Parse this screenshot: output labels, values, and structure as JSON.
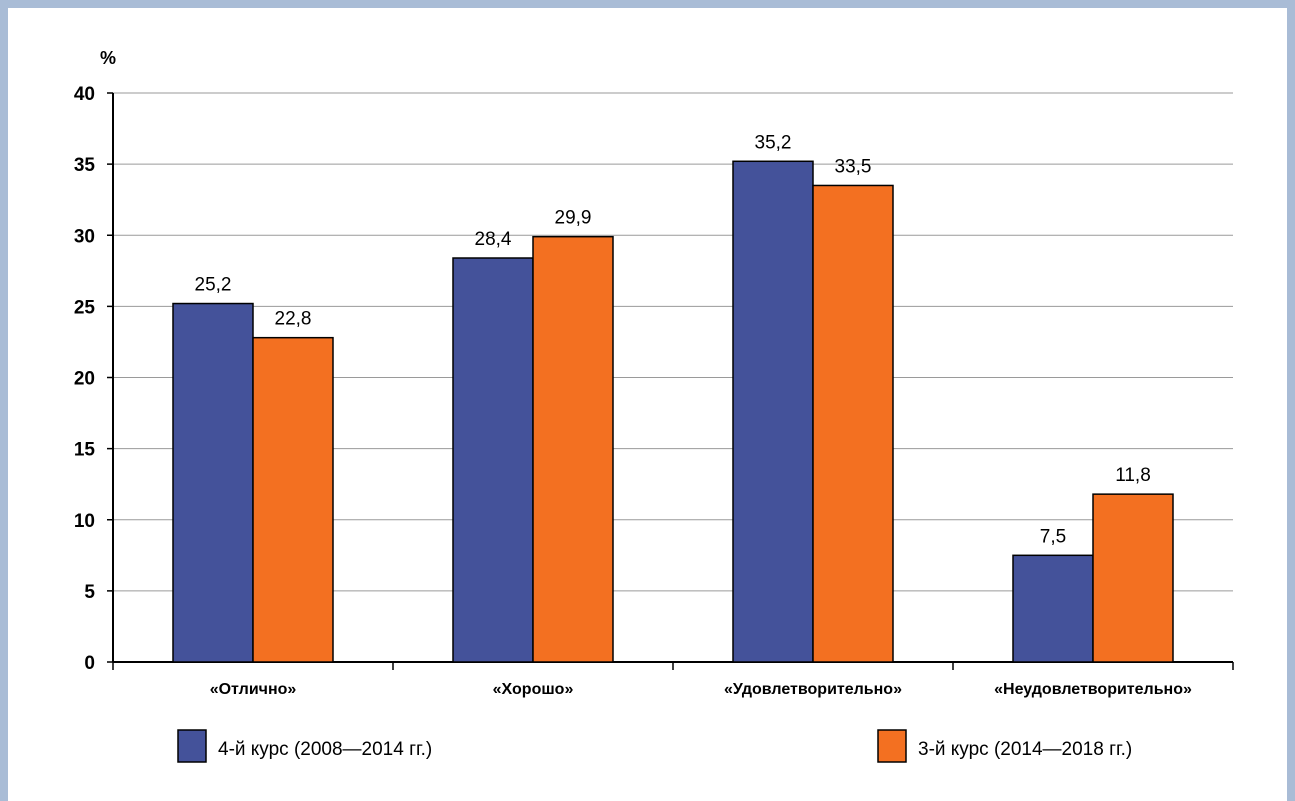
{
  "chart_data": {
    "type": "bar",
    "ylabel": "%",
    "ylim": [
      0,
      40
    ],
    "yticks": [
      0,
      5,
      10,
      15,
      20,
      25,
      30,
      35,
      40
    ],
    "grid": true,
    "legend_position": "bottom",
    "categories": [
      "«Отлично»",
      "«Хорошо»",
      "«Удовлетворительно»",
      "«Неудовлетворительно»"
    ],
    "series": [
      {
        "name": "4-й курс (2008—2014 гг.)",
        "color": "#44529a",
        "values": [
          25.2,
          28.4,
          35.2,
          7.5
        ],
        "labels": [
          "25,2",
          "28,4",
          "35,2",
          "7,5"
        ]
      },
      {
        "name": "3-й курс (2014—2018 гг.)",
        "color": "#f37021",
        "values": [
          22.8,
          29.9,
          33.5,
          11.8
        ],
        "labels": [
          "22,8",
          "29,9",
          "33,5",
          "11,8"
        ]
      }
    ]
  }
}
